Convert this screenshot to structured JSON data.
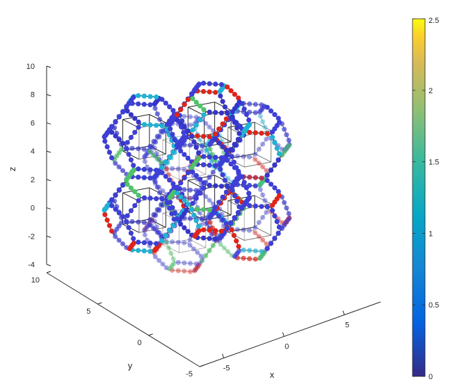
{
  "chart_data": {
    "type": "scatter",
    "title": "",
    "xlabel": "x",
    "ylabel": "y",
    "zlabel": "z",
    "x_ticks": [
      -5,
      0,
      5
    ],
    "y_ticks": [
      -5,
      0,
      5,
      10
    ],
    "z_ticks": [
      -4,
      -2,
      0,
      2,
      4,
      6,
      8,
      10
    ],
    "xlim": [
      -7,
      8
    ],
    "ylim": [
      -5,
      10
    ],
    "zlim": [
      -4,
      10
    ],
    "projection": "3d",
    "structure": "2 x 2 x 2 array of truncated-octahedron cages, edges drawn as black line segments with colored markers",
    "colorbar": {
      "colormap": "parula",
      "range": [
        0,
        2.5
      ],
      "ticks": [
        0,
        0.5,
        1,
        1.5,
        2,
        2.5
      ],
      "tick_labels": [
        "0",
        "0.5",
        "1",
        "1.5",
        "2",
        "2.5"
      ],
      "location": "right"
    },
    "marker_color_values": [
      0.15,
      1.05,
      1.45,
      2.35
    ],
    "marker_colors_hex": [
      "#3d3fd6",
      "#1fb3d4",
      "#4dc36a",
      "#e0241a"
    ],
    "grid": false
  }
}
